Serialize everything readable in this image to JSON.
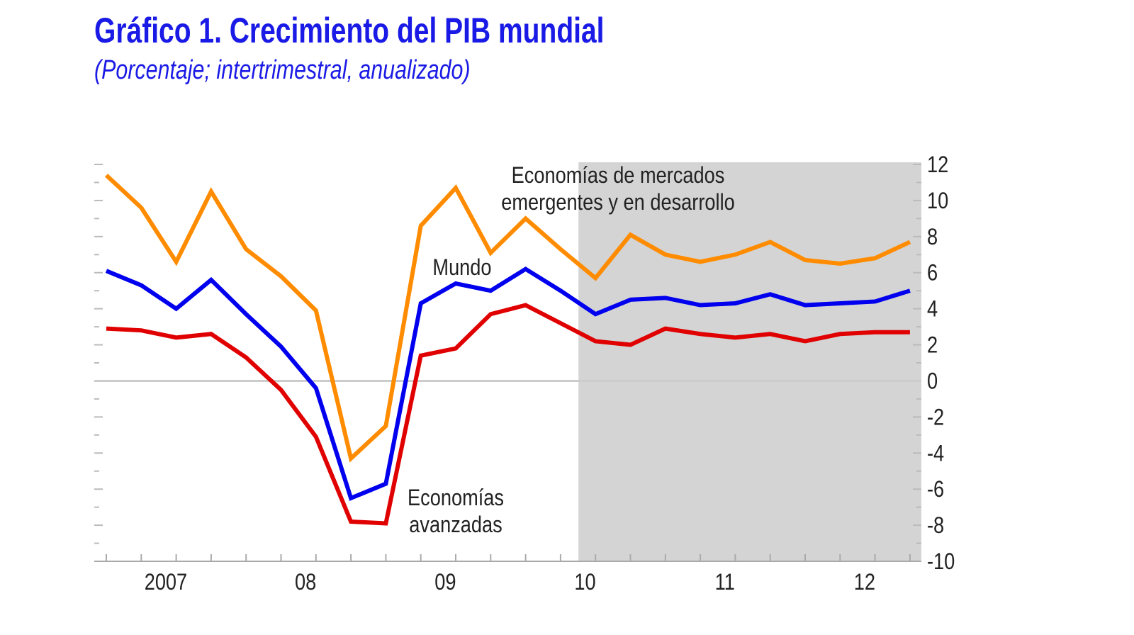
{
  "chart_data": {
    "type": "line",
    "title": "Gráfico 1.  Crecimiento del PIB mundial",
    "subtitle": "(Porcentaje; intertrimestral, anualizado)",
    "x": [
      "2007Q1",
      "2007Q2",
      "2007Q3",
      "2007Q4",
      "2008Q1",
      "2008Q2",
      "2008Q3",
      "2008Q4",
      "2009Q1",
      "2009Q2",
      "2009Q3",
      "2009Q4",
      "2010Q1",
      "2010Q2",
      "2010Q3",
      "2010Q4",
      "2011Q1",
      "2011Q2",
      "2011Q3",
      "2011Q4",
      "2012Q1",
      "2012Q2",
      "2012Q3",
      "2012Q4"
    ],
    "x_tick_labels": [
      "2007",
      "08",
      "09",
      "10",
      "11",
      "12"
    ],
    "y_tick_labels": [
      "12",
      "10",
      "8",
      "6",
      "4",
      "2",
      "0",
      "-2",
      "-4",
      "-6",
      "-8",
      "-10"
    ],
    "ylim": [
      -10,
      12
    ],
    "y_axis_side": "right",
    "shaded_projection_region": {
      "from": "2010Q3",
      "to": "2012Q4",
      "color": "#d4d4d4"
    },
    "zero_line": true,
    "series": [
      {
        "name": "Economías de mercados emergentes y en desarrollo",
        "label_lines": [
          "Economías de mercados",
          "emergentes y en desarrollo"
        ],
        "color": "#ff8c00",
        "values": [
          11.4,
          9.6,
          6.6,
          10.5,
          7.3,
          5.8,
          3.9,
          -4.3,
          -2.5,
          8.6,
          10.7,
          7.1,
          9.0,
          7.3,
          5.7,
          8.1,
          7.0,
          6.6,
          7.0,
          7.7,
          6.7,
          6.5,
          6.8,
          7.7
        ]
      },
      {
        "name": "Mundo",
        "label_lines": [
          "Mundo"
        ],
        "color": "#0000ee",
        "values": [
          6.1,
          5.3,
          4.0,
          5.6,
          3.7,
          1.9,
          -0.4,
          -6.5,
          -5.7,
          4.3,
          5.4,
          5.0,
          6.2,
          5.0,
          3.7,
          4.5,
          4.6,
          4.2,
          4.3,
          4.8,
          4.2,
          4.3,
          4.4,
          5.0
        ]
      },
      {
        "name": "Economías avanzadas",
        "label_lines": [
          "Economías",
          "avanzadas"
        ],
        "color": "#e00000",
        "values": [
          2.9,
          2.8,
          2.4,
          2.6,
          1.3,
          -0.5,
          -3.1,
          -7.8,
          -7.9,
          1.4,
          1.8,
          3.7,
          4.2,
          3.2,
          2.2,
          2.0,
          2.9,
          2.6,
          2.4,
          2.6,
          2.2,
          2.6,
          2.7,
          2.7
        ]
      }
    ]
  }
}
